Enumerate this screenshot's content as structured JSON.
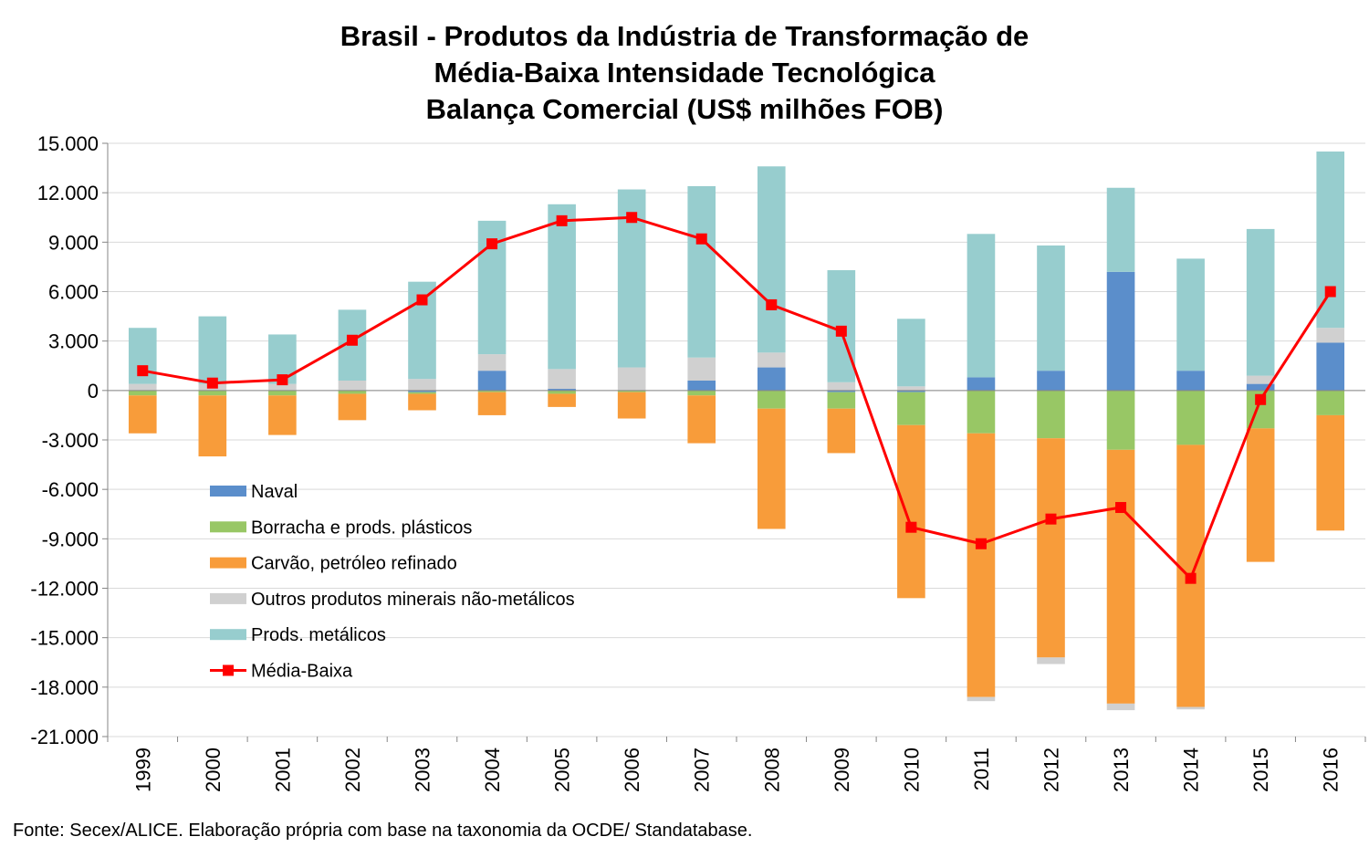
{
  "chart_data": {
    "type": "bar",
    "title": [
      "Brasil - Produtos da Indústria de Transformação de",
      "Média-Baixa Intensidade Tecnológica",
      "Balança Comercial (US$ milhões FOB)"
    ],
    "categories": [
      "1999",
      "2000",
      "2001",
      "2002",
      "2003",
      "2004",
      "2005",
      "2006",
      "2007",
      "2008",
      "2009",
      "2010",
      "2011",
      "2012",
      "2013",
      "2014",
      "2015",
      "2016"
    ],
    "ylim": [
      -21000,
      15000
    ],
    "yticks": [
      15000,
      12000,
      9000,
      6000,
      3000,
      0,
      -3000,
      -6000,
      -9000,
      -12000,
      -15000,
      -18000,
      -21000
    ],
    "ytick_labels": [
      "15.000",
      "12.000",
      "9.000",
      "6.000",
      "3.000",
      "0",
      "-3.000",
      "-6.000",
      "-9.000",
      "-12.000",
      "-15.000",
      "-18.000",
      "-21.000"
    ],
    "grid": true,
    "legend": "inside-left",
    "series": [
      {
        "name": "Naval",
        "color": "#5B8ECB",
        "values": [
          0,
          0,
          0,
          0,
          -100,
          1200,
          100,
          0,
          600,
          1400,
          -100,
          -100,
          800,
          1200,
          7200,
          1200,
          400,
          2900
        ]
      },
      {
        "name": "Borracha e prods. plásticos",
        "color": "#98C765",
        "values": [
          -300,
          -300,
          -300,
          -200,
          -100,
          -100,
          -200,
          -100,
          -300,
          -1100,
          -1000,
          -2000,
          -2600,
          -2900,
          -3600,
          -3300,
          -2300,
          -1500
        ]
      },
      {
        "name": "Carvão, petróleo refinado",
        "color": "#F89C3A",
        "values": [
          -2300,
          -3700,
          -2400,
          -1600,
          -1000,
          -1400,
          -800,
          -1600,
          -2900,
          -7300,
          -2700,
          -10500,
          -16000,
          -13300,
          -15400,
          -15900,
          -8100,
          -7000
        ]
      },
      {
        "name": "Outros produtos minerais não-metálicos",
        "color": "#D0D0D0",
        "values": [
          400,
          400,
          400,
          600,
          700,
          1000,
          1200,
          1400,
          1400,
          900,
          500,
          250,
          -250,
          -400,
          -400,
          -150,
          500,
          900
        ]
      },
      {
        "name": "Prods. metálicos",
        "color": "#97CDCE",
        "values": [
          3400,
          4100,
          3000,
          4300,
          5900,
          8100,
          10000,
          10800,
          10400,
          11300,
          6800,
          4100,
          8700,
          7600,
          5100,
          6800,
          8900,
          10700
        ]
      },
      {
        "name": "Média-Baixa",
        "color": "#FF0000",
        "type": "line",
        "values": [
          1200,
          450,
          650,
          3050,
          5500,
          8900,
          10300,
          10500,
          9200,
          5200,
          3600,
          -8300,
          -9300,
          -7800,
          -7100,
          -11400,
          -550,
          6000
        ]
      }
    ],
    "source": "Fonte: Secex/ALICE. Elaboração própria com base na taxonomia da OCDE/ Standatabase."
  }
}
